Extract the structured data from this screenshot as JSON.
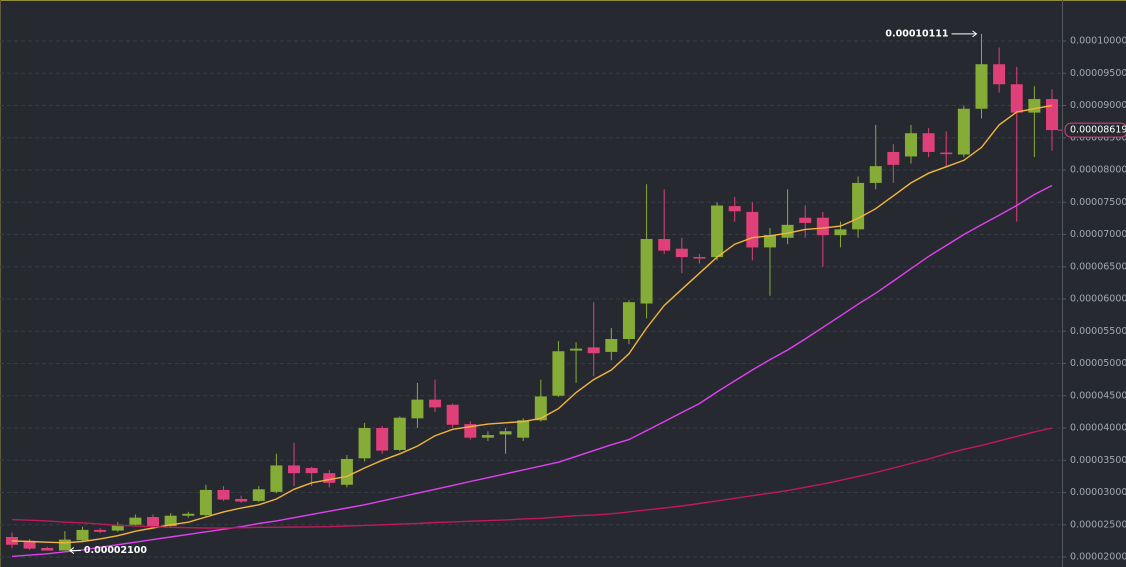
{
  "chart_data": {
    "type": "candlestick",
    "open": [
      2.31e-05,
      2.25e-05,
      2.14e-05,
      2.1e-05,
      2.26e-05,
      2.42e-05,
      2.41e-05,
      2.5e-05,
      2.62e-05,
      2.48e-05,
      2.64e-05,
      2.65e-05,
      3.04e-05,
      2.9e-05,
      2.87e-05,
      3.01e-05,
      3.42e-05,
      3.38e-05,
      3.3e-05,
      3.12e-05,
      3.53e-05,
      4e-05,
      3.66e-05,
      4.15e-05,
      4.44e-05,
      4.36e-05,
      4.06e-05,
      3.85e-05,
      3.9e-05,
      3.85e-05,
      4.12e-05,
      4.5e-05,
      5.2e-05,
      5.25e-05,
      5.18e-05,
      5.38e-05,
      5.93e-05,
      6.93e-05,
      6.78e-05,
      6.65e-05,
      6.65e-05,
      7.44e-05,
      7.35e-05,
      6.8e-05,
      6.95e-05,
      7.26e-05,
      7.26e-05,
      6.99e-05,
      7.08e-05,
      7.8e-05,
      8.28e-05,
      8.21e-05,
      8.57e-05,
      8.27e-05,
      8.24e-05,
      8.95e-05,
      9.64e-05,
      9.33e-05,
      8.89e-05,
      9.1e-05
    ],
    "high": [
      2.38e-05,
      2.28e-05,
      2.16e-05,
      2.4e-05,
      2.47e-05,
      2.45e-05,
      2.54e-05,
      2.66e-05,
      2.66e-05,
      2.68e-05,
      2.7e-05,
      3.12e-05,
      3.1e-05,
      2.95e-05,
      3.1e-05,
      3.6e-05,
      3.77e-05,
      3.4e-05,
      3.35e-05,
      3.58e-05,
      4.08e-05,
      4.03e-05,
      4.18e-05,
      4.7e-05,
      4.75e-05,
      4.38e-05,
      4.1e-05,
      3.95e-05,
      4e-05,
      4.15e-05,
      4.75e-05,
      5.35e-05,
      5.33e-05,
      5.95e-05,
      5.55e-05,
      5.98e-05,
      7.78e-05,
      7.7e-05,
      6.95e-05,
      6.7e-05,
      7.5e-05,
      7.58e-05,
      7.5e-05,
      7.1e-05,
      7.7e-05,
      7.45e-05,
      7.35e-05,
      7.2e-05,
      7.9e-05,
      8.7e-05,
      8.4e-05,
      8.7e-05,
      8.65e-05,
      8.6e-05,
      9e-05,
      0.00010111,
      9.9e-05,
      9.6e-05,
      9.3e-05,
      9.25e-05
    ],
    "low": [
      2.14e-05,
      2.11e-05,
      2.11e-05,
      2.1e-05,
      2.23e-05,
      2.37e-05,
      2.39e-05,
      2.48e-05,
      2.45e-05,
      2.46e-05,
      2.61e-05,
      2.63e-05,
      2.87e-05,
      2.84e-05,
      2.85e-05,
      2.99e-05,
      3.1e-05,
      3.1e-05,
      3.08e-05,
      3.08e-05,
      3.48e-05,
      3.6e-05,
      3.64e-05,
      4e-05,
      4.25e-05,
      4e-05,
      3.82e-05,
      3.8e-05,
      3.6e-05,
      3.8e-05,
      4.1e-05,
      4.48e-05,
      4.7e-05,
      4.8e-05,
      5.05e-05,
      5.3e-05,
      5.7e-05,
      6.7e-05,
      6.4e-05,
      6.55e-05,
      6.6e-05,
      7.2e-05,
      6.6e-05,
      6.05e-05,
      6.85e-05,
      6.95e-05,
      6.5e-05,
      6.8e-05,
      6.95e-05,
      7.7e-05,
      7.8e-05,
      8.1e-05,
      8.2e-05,
      8.05e-05,
      8.2e-05,
      8.8e-05,
      9.2e-05,
      7.2e-05,
      8.2e-05,
      8.3e-05
    ],
    "close": [
      2.19e-05,
      2.13e-05,
      2.1e-05,
      2.27e-05,
      2.42e-05,
      2.39e-05,
      2.5e-05,
      2.61e-05,
      2.47e-05,
      2.64e-05,
      2.67e-05,
      3.04e-05,
      2.89e-05,
      2.86e-05,
      3.05e-05,
      3.42e-05,
      3.3e-05,
      3.3e-05,
      3.15e-05,
      3.52e-05,
      4e-05,
      3.65e-05,
      4.16e-05,
      4.44e-05,
      4.32e-05,
      4.05e-05,
      3.85e-05,
      3.89e-05,
      3.95e-05,
      4.12e-05,
      4.49e-05,
      5.19e-05,
      5.23e-05,
      5.16e-05,
      5.38e-05,
      5.95e-05,
      6.93e-05,
      6.75e-05,
      6.65e-05,
      6.64e-05,
      7.45e-05,
      7.36e-05,
      6.8e-05,
      6.99e-05,
      7.15e-05,
      7.18e-05,
      6.99e-05,
      7.08e-05,
      7.8e-05,
      8.06e-05,
      8.08e-05,
      8.57e-05,
      8.28e-05,
      8.25e-05,
      8.95e-05,
      9.64e-05,
      9.33e-05,
      8.89e-05,
      9.1e-05,
      8.619e-05
    ],
    "up_color": "#86ac38",
    "down_color": "#e0407a",
    "series": [
      {
        "color": "#f2b53c",
        "values": [
          2.25e-05,
          2.24e-05,
          2.23e-05,
          2.22e-05,
          2.24e-05,
          2.28e-05,
          2.33e-05,
          2.4e-05,
          2.45e-05,
          2.5e-05,
          2.54e-05,
          2.62e-05,
          2.7e-05,
          2.76e-05,
          2.81e-05,
          2.9e-05,
          3.05e-05,
          3.15e-05,
          3.2e-05,
          3.25e-05,
          3.38e-05,
          3.5e-05,
          3.6e-05,
          3.72e-05,
          3.88e-05,
          3.98e-05,
          4.02e-05,
          4.06e-05,
          4.08e-05,
          4.1e-05,
          4.15e-05,
          4.3e-05,
          4.55e-05,
          4.75e-05,
          4.9e-05,
          5.15e-05,
          5.55e-05,
          5.9e-05,
          6.15e-05,
          6.4e-05,
          6.65e-05,
          6.85e-05,
          6.95e-05,
          6.98e-05,
          7.02e-05,
          7.08e-05,
          7.1e-05,
          7.13e-05,
          7.25e-05,
          7.4e-05,
          7.6e-05,
          7.8e-05,
          7.95e-05,
          8.05e-05,
          8.15e-05,
          8.35e-05,
          8.7e-05,
          8.9e-05,
          8.95e-05,
          9e-05
        ]
      },
      {
        "color": "#e040f0",
        "values": [
          2.01e-05,
          2.03e-05,
          2.05e-05,
          2.08e-05,
          2.11e-05,
          2.15e-05,
          2.19e-05,
          2.23e-05,
          2.27e-05,
          2.31e-05,
          2.35e-05,
          2.39e-05,
          2.43e-05,
          2.47e-05,
          2.52e-05,
          2.56e-05,
          2.61e-05,
          2.66e-05,
          2.71e-05,
          2.76e-05,
          2.81e-05,
          2.87e-05,
          2.93e-05,
          2.99e-05,
          3.05e-05,
          3.11e-05,
          3.17e-05,
          3.23e-05,
          3.29e-05,
          3.35e-05,
          3.41e-05,
          3.47e-05,
          3.56e-05,
          3.65e-05,
          3.74e-05,
          3.82e-05,
          3.96e-05,
          4.1e-05,
          4.24e-05,
          4.38e-05,
          4.56e-05,
          4.73e-05,
          4.9e-05,
          5.06e-05,
          5.21e-05,
          5.38e-05,
          5.56e-05,
          5.74e-05,
          5.92e-05,
          6.09e-05,
          6.28e-05,
          6.47e-05,
          6.66e-05,
          6.83e-05,
          7e-05,
          7.15e-05,
          7.3e-05,
          7.45e-05,
          7.62e-05,
          7.76e-05
        ]
      },
      {
        "color": "#c2185b",
        "values": [
          2.58e-05,
          2.57e-05,
          2.56e-05,
          2.54e-05,
          2.53e-05,
          2.51e-05,
          2.49e-05,
          2.48e-05,
          2.47e-05,
          2.46e-05,
          2.455e-05,
          2.45e-05,
          2.45e-05,
          2.455e-05,
          2.46e-05,
          2.46e-05,
          2.465e-05,
          2.467e-05,
          2.47e-05,
          2.48e-05,
          2.49e-05,
          2.5e-05,
          2.51e-05,
          2.52e-05,
          2.535e-05,
          2.545e-05,
          2.555e-05,
          2.565e-05,
          2.575e-05,
          2.59e-05,
          2.6e-05,
          2.62e-05,
          2.64e-05,
          2.65e-05,
          2.67e-05,
          2.7e-05,
          2.73e-05,
          2.76e-05,
          2.79e-05,
          2.83e-05,
          2.87e-05,
          2.91e-05,
          2.95e-05,
          2.99e-05,
          3.03e-05,
          3.08e-05,
          3.13e-05,
          3.19e-05,
          3.25e-05,
          3.31e-05,
          3.38e-05,
          3.45e-05,
          3.52e-05,
          3.6e-05,
          3.67e-05,
          3.73e-05,
          3.8e-05,
          3.87e-05,
          3.94e-05,
          4e-05
        ]
      }
    ],
    "ylim": [
      1.845e-05,
      0.00010636
    ],
    "yticks": [
      {
        "value": 2e-05,
        "label": "0.00002000"
      },
      {
        "value": 2.5e-05,
        "label": "0.00002500"
      },
      {
        "value": 3e-05,
        "label": "0.00003000"
      },
      {
        "value": 3.5e-05,
        "label": "0.00003500"
      },
      {
        "value": 4e-05,
        "label": "0.00004000"
      },
      {
        "value": 4.5e-05,
        "label": "0.00004500"
      },
      {
        "value": 5e-05,
        "label": "0.00005000"
      },
      {
        "value": 5.5e-05,
        "label": "0.00005500"
      },
      {
        "value": 6e-05,
        "label": "0.00006000"
      },
      {
        "value": 6.5e-05,
        "label": "0.00006500"
      },
      {
        "value": 7e-05,
        "label": "0.00007000"
      },
      {
        "value": 7.5e-05,
        "label": "0.00007500"
      },
      {
        "value": 8e-05,
        "label": "0.00008000"
      },
      {
        "value": 8.5e-05,
        "label": "0.00008500"
      },
      {
        "value": 9e-05,
        "label": "0.00009000"
      },
      {
        "value": 9.5e-05,
        "label": "0.00009500"
      },
      {
        "value": 0.0001,
        "label": "0.00010000"
      }
    ],
    "grid": true,
    "high_label": "0.00010111",
    "low_label": "0.00002100",
    "last_label": "0.00008619"
  }
}
